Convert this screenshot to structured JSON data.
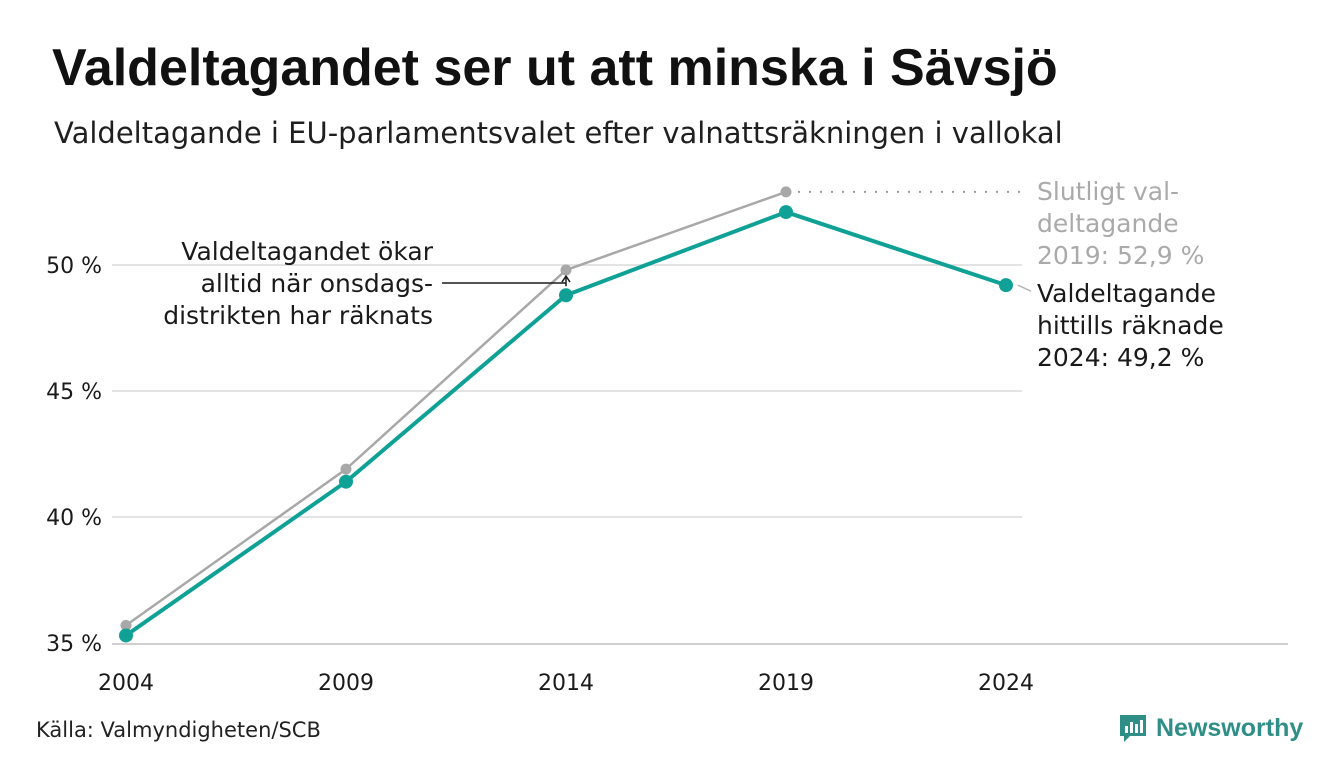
{
  "title": "Valdeltagandet ser ut att minska i Sävsjö",
  "subtitle": "Valdeltagande i EU-parlamentsvalet efter valnattsräkningen i vallokal",
  "source": "Källa: Valmyndigheten/SCB",
  "logo": {
    "name": "Newsworthy",
    "icon": "newsworthy-chart-icon"
  },
  "colors": {
    "accent": "#0fa195",
    "final": "#a8a8a8",
    "grid": "#e3e3e3",
    "text": "#1a1a1a",
    "muted": "#aaaaaa"
  },
  "chart_data": {
    "type": "line",
    "title": "Valdeltagandet ser ut att minska i Sävsjö",
    "subtitle": "Valdeltagande i EU-parlamentsvalet efter valnattsräkningen i vallokal",
    "xlabel": "",
    "ylabel": "",
    "categories": [
      "2004",
      "2009",
      "2014",
      "2019",
      "2024"
    ],
    "y_ticks": [
      35,
      40,
      45,
      50
    ],
    "y_tick_labels": [
      "35 %",
      "40 %",
      "45 %",
      "50 %"
    ],
    "ylim": [
      35,
      53.5
    ],
    "grid": true,
    "series": [
      {
        "key": "final",
        "values": [
          35.7,
          41.9,
          49.8,
          52.9,
          null
        ],
        "color": "#a8a8a8"
      },
      {
        "key": "counted",
        "values": [
          35.3,
          41.4,
          48.8,
          52.1,
          49.2
        ],
        "color": "#0fa195"
      }
    ],
    "annotations": {
      "final_label": [
        "Slutligt val-",
        "deltagande",
        "2019: 52,9 %"
      ],
      "counted_label": [
        "Valdeltagande",
        "hittills räknade",
        "2024: 49,2 %"
      ],
      "increase_note": [
        "Valdeltagandet ökar",
        "alltid när onsdags-",
        "distrikten har räknats"
      ]
    }
  }
}
